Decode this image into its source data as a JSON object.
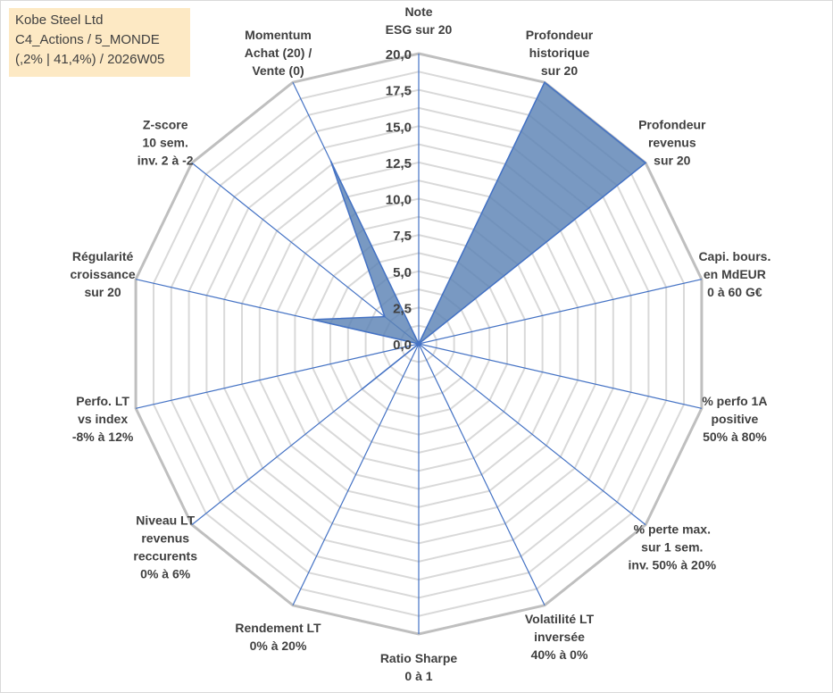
{
  "info": {
    "line1": "Kobe Steel Ltd",
    "line2": "C4_Actions / 5_MONDE",
    "line3": "(,2% | 41,4%) / 2026W05"
  },
  "chart_data": {
    "type": "radar",
    "title": "",
    "rlim": [
      0,
      20
    ],
    "ticks": [
      "0,0",
      "2,5",
      "5,0",
      "7,5",
      "10,0",
      "12,5",
      "15,0",
      "17,5",
      "20,0"
    ],
    "grid": true,
    "axes": [
      [
        "Note",
        "ESG sur 20"
      ],
      [
        "Profondeur",
        "historique",
        "sur 20"
      ],
      [
        "Profondeur",
        "revenus",
        "sur 20"
      ],
      [
        "Capi. bours.",
        "en MdEUR",
        "0 à 60 G€"
      ],
      [
        "% perfo 1A",
        "positive",
        "50% à 80%"
      ],
      [
        "% perte max.",
        "sur 1 sem.",
        "inv. 50% à 20%"
      ],
      [
        "Volatilité LT",
        "inversée",
        "40% à 0%"
      ],
      [
        "Ratio Sharpe",
        "0 à 1"
      ],
      [
        "Rendement LT",
        "0% à 20%"
      ],
      [
        "Niveau LT",
        "revenus",
        "reccurents",
        "0% à 6%"
      ],
      [
        "Perfo. LT",
        "vs index",
        "-8% à 12%"
      ],
      [
        "Régularité",
        "croissance",
        "sur 20"
      ],
      [
        "Z-score",
        "10 sem.",
        "inv. 2 à -2"
      ],
      [
        "Momentum",
        "Achat (20) /",
        "Vente (0)"
      ]
    ],
    "series": [
      {
        "values": [
          0,
          20,
          20,
          0,
          0,
          0,
          0,
          0,
          0,
          5,
          0,
          7.5,
          3,
          14
        ],
        "color": "#5b82b4"
      }
    ]
  }
}
